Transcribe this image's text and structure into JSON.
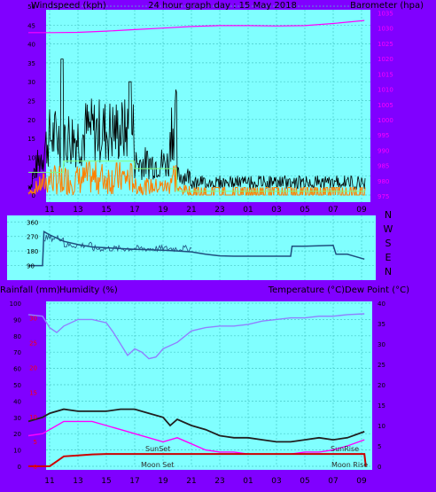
{
  "colors": {
    "background": "#8000ff",
    "plot_bg": "#80ffff",
    "grid": "#49c8c8",
    "axis_text": "#000000",
    "magenta": "#ff00ff",
    "red": "#ff0000",
    "wind_gust": "#000000",
    "wind_avg": "#ff8000",
    "wind_dir_mean": "#80ff80",
    "direction": "#1f4f7f",
    "outdoor_temp": "#9080ff",
    "temperature": "#202020",
    "dew_point": "#ff00ff",
    "rain": "#cc0000"
  },
  "titles": {
    "top_left": "Windspeed (kph)",
    "top_center": "24 hour graph day : 15 May 2018",
    "top_right": "Barometer (hpa)",
    "bottom_left_1": "Rainfall (mm)",
    "bottom_left_2": "Humidity (%)",
    "bottom_right": "Temperature (°C)Dew Point (°C)"
  },
  "compass": [
    "N",
    "W",
    "S",
    "E",
    "N"
  ],
  "time_labels": [
    "11",
    "13",
    "15",
    "17",
    "19",
    "21",
    "23",
    "01",
    "03",
    "05",
    "07",
    "09"
  ],
  "annotations": {
    "sunset": "SunSet",
    "sunrise": "SunRise",
    "moonset": "Moon Set",
    "moonrise": "Moon Rise"
  },
  "chart_data": [
    {
      "type": "line",
      "name": "wind-baro",
      "title": "24 hour graph day : 15 May 2018",
      "ylabel": "Windspeed (kph)",
      "y2label": "Barometer (hpa)",
      "yticks": [
        0,
        5,
        10,
        15,
        20,
        25,
        30,
        35,
        40,
        45,
        50
      ],
      "y2ticks": [
        975,
        980,
        985,
        990,
        995,
        1000,
        1005,
        1010,
        1015,
        1020,
        1025,
        1030,
        1035
      ],
      "ylim": [
        0,
        50
      ],
      "y2lim": [
        973,
        1036
      ],
      "x_hours": [
        9,
        33.5
      ],
      "series": [
        {
          "name": "Barometer",
          "axis": "y2",
          "color": "#ff00ff",
          "points": [
            [
              9.5,
              1028.5
            ],
            [
              11,
              1028.5
            ],
            [
              13,
              1028.6
            ],
            [
              15,
              1029
            ],
            [
              17,
              1029.5
            ],
            [
              19,
              1030
            ],
            [
              21,
              1030.5
            ],
            [
              23,
              1030.8
            ],
            [
              25,
              1030.8
            ],
            [
              27,
              1030.7
            ],
            [
              29,
              1030.8
            ],
            [
              31,
              1031.5
            ],
            [
              33.2,
              1032.5
            ]
          ]
        }
      ]
    },
    {
      "type": "line",
      "name": "wind-direction",
      "y_labels": [
        "360",
        "270",
        "180",
        "90"
      ],
      "ylim": [
        0,
        400
      ],
      "x_hours": [
        9,
        33.5
      ],
      "series": [
        {
          "name": "Direction",
          "color": "#1f4f7f",
          "points": [
            [
              9.5,
              90
            ],
            [
              10.5,
              90
            ],
            [
              10.6,
              300
            ],
            [
              11,
              280
            ],
            [
              12,
              240
            ],
            [
              13,
              220
            ],
            [
              14,
              205
            ],
            [
              15,
              200
            ],
            [
              16,
              195
            ],
            [
              17,
              190
            ],
            [
              18,
              188
            ],
            [
              19,
              185
            ],
            [
              20,
              180
            ],
            [
              21,
              175
            ],
            [
              22,
              160
            ],
            [
              23,
              150
            ],
            [
              24,
              148
            ],
            [
              25,
              148
            ],
            [
              26,
              148
            ],
            [
              27,
              148
            ],
            [
              28,
              148
            ],
            [
              28.1,
              210
            ],
            [
              29,
              210
            ],
            [
              30,
              212
            ],
            [
              31,
              215
            ],
            [
              31.2,
              160
            ],
            [
              32,
              160
            ],
            [
              33.2,
              130
            ]
          ]
        }
      ]
    },
    {
      "type": "line",
      "name": "temp-hum",
      "ylabel": "Humidity (%)",
      "y2label": "Temperature (°C)",
      "yticks": [
        0,
        10,
        20,
        30,
        40,
        50,
        60,
        70,
        80,
        90,
        100
      ],
      "y2ticks": [
        0,
        5,
        10,
        15,
        20,
        25,
        30,
        35,
        40
      ],
      "rain_ticks": [
        0,
        5,
        10,
        15,
        20,
        25,
        30
      ],
      "ylim": [
        0,
        100
      ],
      "y2lim": [
        0,
        40
      ],
      "x_hours": [
        9,
        33.5
      ],
      "series": [
        {
          "name": "Humidity",
          "axis": "y",
          "color": "#9080ff",
          "points": [
            [
              9.5,
              93
            ],
            [
              10.5,
              92
            ],
            [
              11,
              85
            ],
            [
              11.5,
              82
            ],
            [
              12,
              86
            ],
            [
              13,
              90
            ],
            [
              14,
              90
            ],
            [
              15,
              88
            ],
            [
              15.5,
              82
            ],
            [
              16,
              75
            ],
            [
              16.5,
              68
            ],
            [
              17,
              72
            ],
            [
              17.5,
              70
            ],
            [
              18,
              66
            ],
            [
              18.5,
              67
            ],
            [
              19,
              72
            ],
            [
              20,
              76
            ],
            [
              21,
              83
            ],
            [
              22,
              85
            ],
            [
              23,
              86
            ],
            [
              24,
              86
            ],
            [
              25,
              87
            ],
            [
              26,
              89
            ],
            [
              27,
              90
            ],
            [
              28,
              91
            ],
            [
              29,
              91
            ],
            [
              30,
              92
            ],
            [
              31,
              92
            ],
            [
              32,
              93
            ],
            [
              33.2,
              93.5
            ]
          ]
        },
        {
          "name": "Temperature",
          "axis": "y2",
          "color": "#202020",
          "points": [
            [
              9.5,
              11
            ],
            [
              10.5,
              12
            ],
            [
              11,
              13
            ],
            [
              12,
              14
            ],
            [
              13,
              13.5
            ],
            [
              14,
              13.5
            ],
            [
              15,
              13.5
            ],
            [
              16,
              14
            ],
            [
              17,
              14
            ],
            [
              18,
              13
            ],
            [
              19,
              12
            ],
            [
              19.5,
              10
            ],
            [
              20,
              11.5
            ],
            [
              21,
              10
            ],
            [
              22,
              9
            ],
            [
              23,
              7.5
            ],
            [
              24,
              7
            ],
            [
              25,
              7
            ],
            [
              26,
              6.5
            ],
            [
              27,
              6
            ],
            [
              28,
              6
            ],
            [
              29,
              6.5
            ],
            [
              30,
              7
            ],
            [
              31,
              6.5
            ],
            [
              32,
              7
            ],
            [
              33.2,
              8.5
            ]
          ]
        },
        {
          "name": "Dew Point",
          "axis": "y2",
          "color": "#ff00ff",
          "points": [
            [
              9.5,
              7.5
            ],
            [
              10.5,
              8
            ],
            [
              11,
              9
            ],
            [
              12,
              11
            ],
            [
              13,
              11
            ],
            [
              14,
              11
            ],
            [
              15,
              10
            ],
            [
              16,
              9
            ],
            [
              17,
              8
            ],
            [
              18,
              7
            ],
            [
              19,
              6
            ],
            [
              20,
              7
            ],
            [
              21,
              5.5
            ],
            [
              22,
              4
            ],
            [
              23,
              3.5
            ],
            [
              24,
              3.5
            ],
            [
              25,
              3
            ],
            [
              26,
              3
            ],
            [
              27,
              3
            ],
            [
              28,
              3
            ],
            [
              29,
              3.5
            ],
            [
              30,
              3.5
            ],
            [
              31,
              4
            ],
            [
              32,
              5
            ],
            [
              33.2,
              6.5
            ]
          ]
        },
        {
          "name": "Rainfall",
          "axis": "rain",
          "color": "#cc0000",
          "points": [
            [
              9.5,
              0
            ],
            [
              11,
              0
            ],
            [
              11.5,
              1
            ],
            [
              12,
              2
            ],
            [
              13,
              2.2
            ],
            [
              14,
              2.4
            ],
            [
              15,
              2.5
            ],
            [
              17,
              2.5
            ],
            [
              33.2,
              2.5
            ],
            [
              33.3,
              0
            ]
          ]
        }
      ]
    }
  ]
}
